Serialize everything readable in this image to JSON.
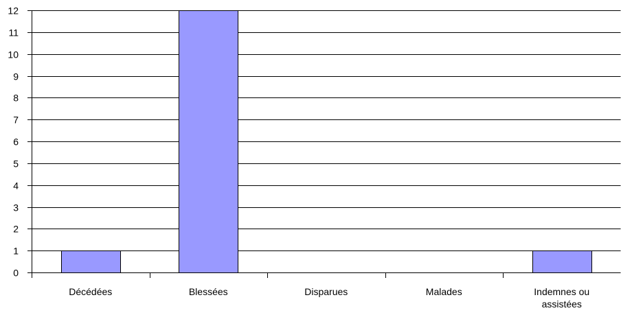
{
  "chart_data": {
    "type": "bar",
    "categories": [
      [
        "Décédées"
      ],
      [
        "Blessées"
      ],
      [
        "Disparues"
      ],
      [
        "Malades"
      ],
      [
        "Indemnes ou",
        "assistées"
      ]
    ],
    "values": [
      1,
      12,
      0,
      0,
      1
    ],
    "ylim": [
      0,
      12
    ],
    "yticks": [
      "0",
      "1",
      "2",
      "3",
      "4",
      "5",
      "6",
      "7",
      "8",
      "9",
      "10",
      "11",
      "12"
    ],
    "grid": true,
    "legend": "none",
    "bar_color": "#9999ff",
    "bar_border": "#000000"
  }
}
